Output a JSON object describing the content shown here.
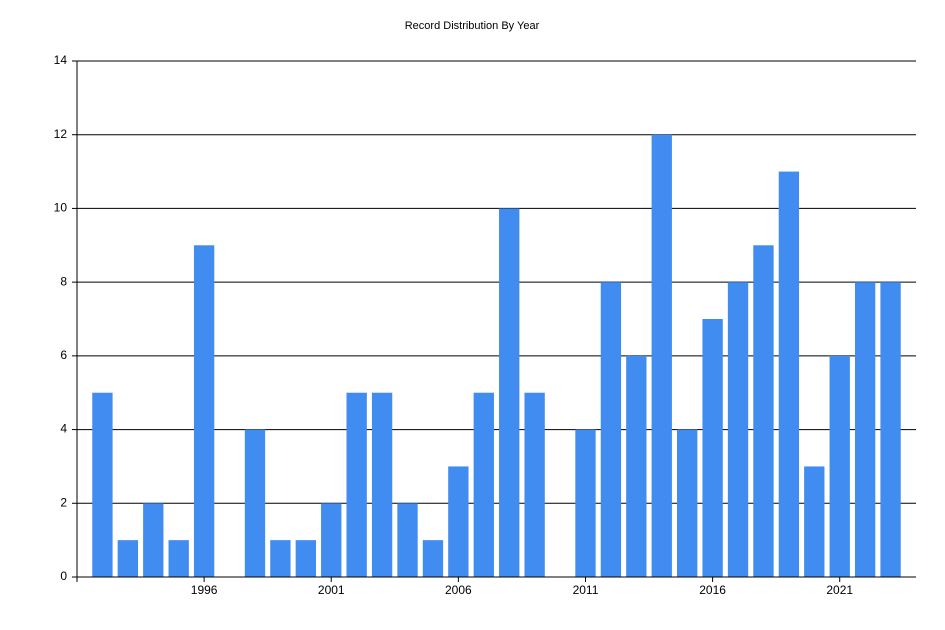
{
  "chart_data": {
    "type": "bar",
    "title": "Record Distribution By Year",
    "x": [
      1992,
      1993,
      1994,
      1995,
      1996,
      1997,
      1998,
      1999,
      2000,
      2001,
      2002,
      2003,
      2004,
      2005,
      2006,
      2007,
      2008,
      2009,
      2010,
      2011,
      2012,
      2013,
      2014,
      2015,
      2016,
      2017,
      2018,
      2019,
      2020,
      2021,
      2022,
      2023
    ],
    "values": [
      5,
      1,
      2,
      1,
      9,
      0,
      4,
      1,
      1,
      2,
      5,
      5,
      2,
      1,
      3,
      5,
      10,
      5,
      0,
      4,
      8,
      6,
      12,
      4,
      7,
      8,
      9,
      11,
      3,
      6,
      8,
      8
    ],
    "color": "#418cf0",
    "xlim": [
      1991,
      2024
    ],
    "xticks": [
      1996,
      2001,
      2006,
      2011,
      2016,
      2021
    ],
    "ylim": [
      0,
      14
    ],
    "yticks": [
      0,
      2,
      4,
      6,
      8,
      10,
      12,
      14
    ],
    "grid": true
  }
}
